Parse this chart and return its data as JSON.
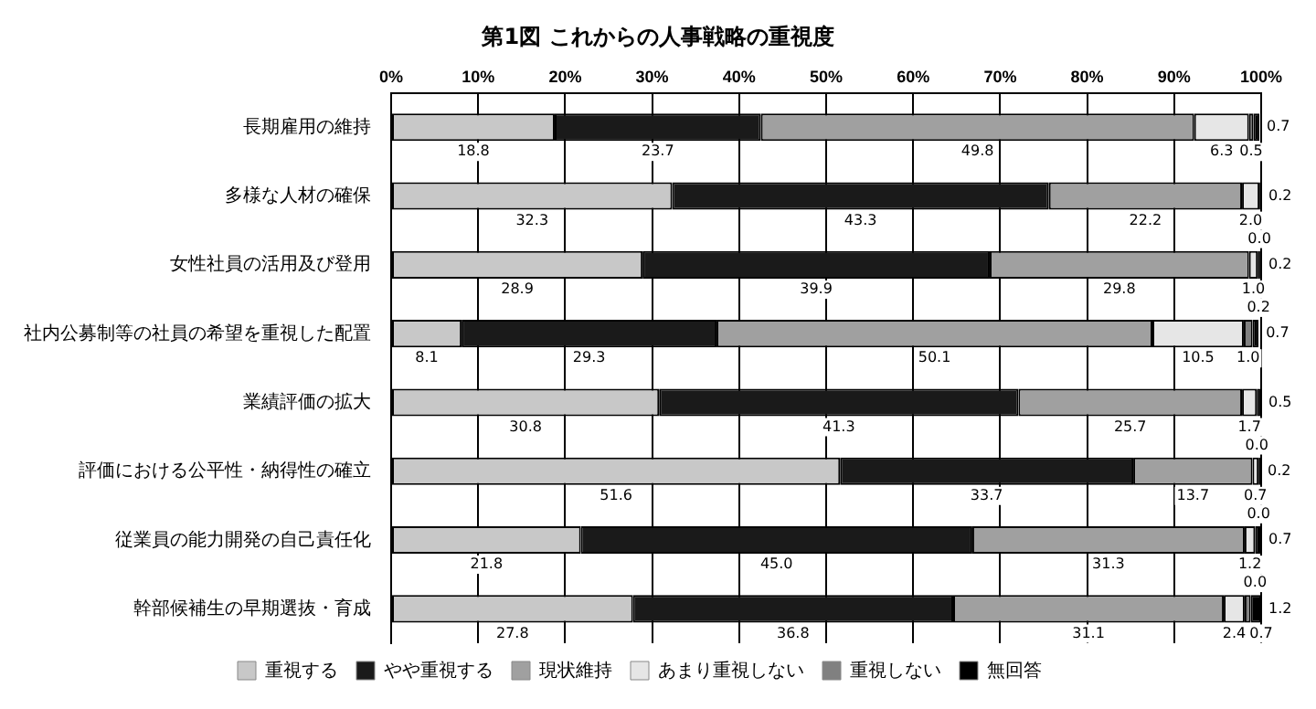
{
  "chart_data": {
    "type": "bar",
    "orientation": "horizontal",
    "stacked": true,
    "title": "第1図 これからの人事戦略の重視度",
    "categories": [
      "長期雇用の維持",
      "多様な人材の確保",
      "女性社員の活用及び登用",
      "社内公募制等の社員の希望を重視した配置",
      "業績評価の拡大",
      "評価における公平性・納得性の確立",
      "従業員の能力開発の自己責任化",
      "幹部候補生の早期選抜・育成"
    ],
    "series": [
      {
        "name": "重視する",
        "color": "#c8c8c8",
        "values": [
          18.8,
          32.3,
          28.9,
          8.1,
          30.8,
          51.6,
          21.8,
          27.8
        ],
        "value_labels": [
          "18.8",
          "32.3",
          "28.9",
          "8.1",
          "30.8",
          "51.6",
          "21.8",
          "27.8"
        ]
      },
      {
        "name": "やや重視する",
        "color": "#1a1a1a",
        "values": [
          23.7,
          43.3,
          39.9,
          29.3,
          41.3,
          33.7,
          45.0,
          36.8
        ],
        "value_labels": [
          "23.7",
          "43.3",
          "39.9",
          "29.3",
          "41.3",
          "33.7",
          "45.0",
          "36.8"
        ]
      },
      {
        "name": "現状維持",
        "color": "#a0a0a0",
        "values": [
          49.8,
          22.2,
          29.8,
          50.1,
          25.7,
          13.7,
          31.3,
          31.1
        ],
        "value_labels": [
          "49.8",
          "22.2",
          "29.8",
          "50.1",
          "25.7",
          "13.7",
          "31.3",
          "31.1"
        ]
      },
      {
        "name": "あまり重視しない",
        "color": "#e6e6e6",
        "values": [
          6.3,
          2.0,
          1.0,
          10.5,
          1.7,
          0.7,
          1.2,
          2.4
        ],
        "value_labels": [
          "6.3",
          "2.0",
          "1.0",
          "10.5",
          "1.7",
          "0.7",
          "1.2",
          "2.4"
        ]
      },
      {
        "name": "重視しない",
        "color": "#808080",
        "values": [
          0.5,
          0.0,
          0.2,
          1.0,
          0.0,
          0.0,
          0.0,
          0.7
        ],
        "value_labels": [
          "0.5",
          "0.0",
          "0.2",
          "1.0",
          "0.0",
          "0.0",
          "0.0",
          "0.7"
        ]
      },
      {
        "name": "無回答",
        "color": "#000000",
        "values": [
          0.7,
          0.2,
          0.2,
          0.7,
          0.5,
          0.2,
          0.7,
          1.2
        ],
        "value_labels": [
          "0.7",
          "0.2",
          "0.2",
          "0.7",
          "0.5",
          "0.2",
          "0.7",
          "1.2"
        ]
      }
    ],
    "xlim": [
      0,
      100
    ],
    "xticks": [
      {
        "value": 0,
        "label": "0%"
      },
      {
        "value": 10,
        "label": "10%"
      },
      {
        "value": 20,
        "label": "20%"
      },
      {
        "value": 30,
        "label": "30%"
      },
      {
        "value": 40,
        "label": "40%"
      },
      {
        "value": 50,
        "label": "50%"
      },
      {
        "value": 60,
        "label": "60%"
      },
      {
        "value": 70,
        "label": "70%"
      },
      {
        "value": 80,
        "label": "80%"
      },
      {
        "value": 90,
        "label": "90%"
      },
      {
        "value": 100,
        "label": "100%"
      }
    ],
    "grid": "x",
    "legend": "bottom"
  }
}
